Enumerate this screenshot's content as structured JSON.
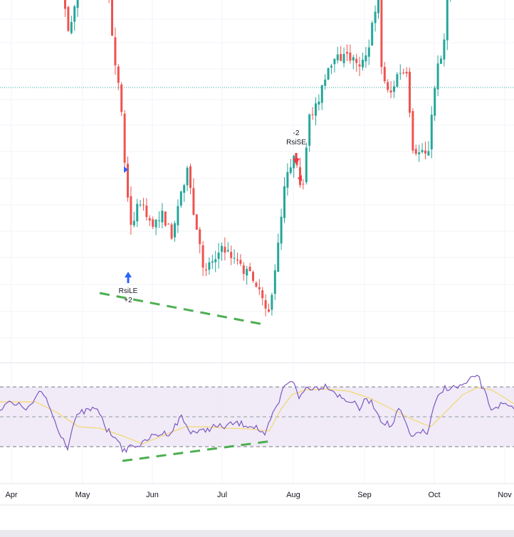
{
  "chart_data": [
    {
      "type": "candlestick",
      "panel": "price",
      "current_price_line": true,
      "grid": true,
      "x_axis": {
        "months": [
          "Apr",
          "May",
          "Jun",
          "Jul",
          "Aug",
          "Sep",
          "Oct",
          "Nov"
        ]
      },
      "signals": [
        {
          "name": "RsiLE",
          "qty": "+2",
          "side": "long",
          "color": "#2962ff"
        },
        {
          "name": "RsiSE",
          "qty": "-2",
          "side": "short",
          "color": "#f23645"
        }
      ],
      "up_color": "#26a69a",
      "down_color": "#ef5350",
      "divergence_color": "#4caf50"
    },
    {
      "type": "line",
      "panel": "rsi",
      "series": [
        {
          "color": "#7e57c2"
        },
        {
          "color": "#f5d76e"
        }
      ],
      "band_color": "#ede7f6"
    }
  ]
}
